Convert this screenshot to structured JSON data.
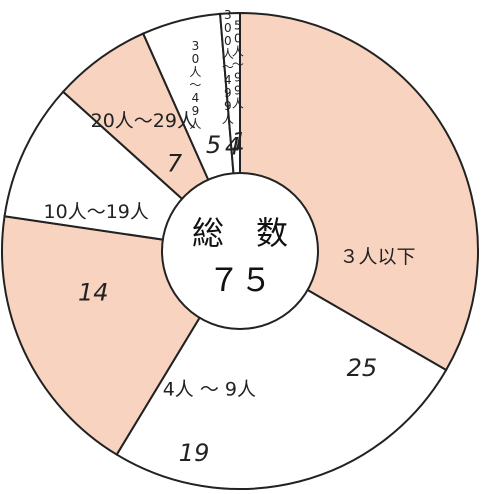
{
  "chart_data": {
    "type": "pie",
    "center_title": "総　数",
    "center_total": "７５",
    "slices": [
      {
        "label": "３人以下",
        "value": 25,
        "color": "#f8d4c0"
      },
      {
        "label": "4人 〜 9人",
        "value": 19,
        "color": "#ffffff"
      },
      {
        "label": "10人〜19人",
        "value": 14,
        "color": "#f8d4c0"
      },
      {
        "label": "20人〜29人",
        "value": 7,
        "color": "#ffffff"
      },
      {
        "label": "30人〜49人",
        "value": 5,
        "color": "#f8d4c0"
      },
      {
        "label": "300人〜499人",
        "value": 4,
        "color": "#ffffff"
      },
      {
        "label": "50人〜99人",
        "value": 1,
        "color": "#ffffff"
      }
    ]
  }
}
